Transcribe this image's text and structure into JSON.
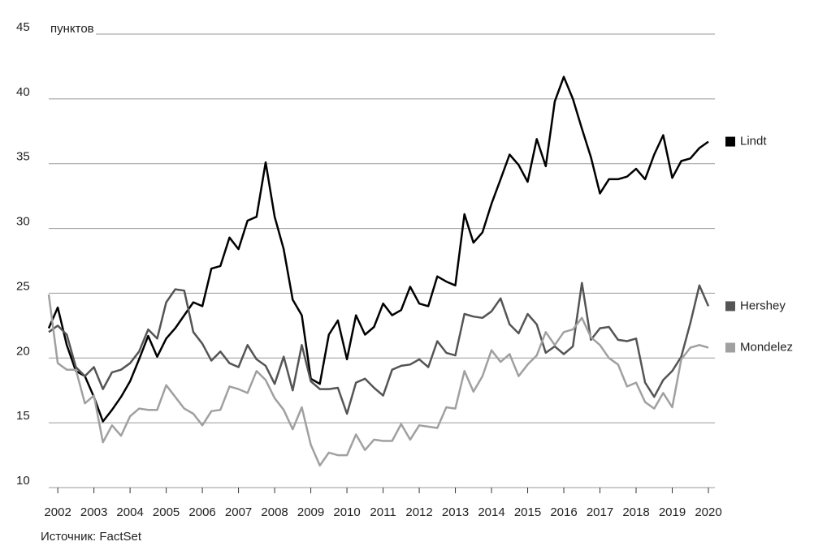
{
  "chart_data": {
    "type": "line",
    "y_unit_label": "пунктов",
    "source": "Источник: FactSet",
    "x": [
      2001.75,
      2002,
      2002.25,
      2002.5,
      2002.75,
      2003,
      2003.25,
      2003.5,
      2003.75,
      2004,
      2004.25,
      2004.5,
      2004.75,
      2005,
      2005.25,
      2005.5,
      2005.75,
      2006,
      2006.25,
      2006.5,
      2006.75,
      2007,
      2007.25,
      2007.5,
      2007.75,
      2008,
      2008.25,
      2008.5,
      2008.75,
      2009,
      2009.25,
      2009.5,
      2009.75,
      2010,
      2010.25,
      2010.5,
      2010.75,
      2011,
      2011.25,
      2011.5,
      2011.75,
      2012,
      2012.25,
      2012.5,
      2012.75,
      2013,
      2013.25,
      2013.5,
      2013.75,
      2014,
      2014.25,
      2014.5,
      2014.75,
      2015,
      2015.25,
      2015.5,
      2015.75,
      2016,
      2016.25,
      2016.5,
      2016.75,
      2017,
      2017.25,
      2017.5,
      2017.75,
      2018,
      2018.25,
      2018.5,
      2018.75,
      2019,
      2019.25,
      2019.5,
      2019.75,
      2020
    ],
    "series": [
      {
        "name": "Lindt",
        "color": "#000000",
        "values": [
          22.3,
          23.9,
          21.0,
          19.0,
          18.6,
          17.0,
          15.1,
          16.0,
          17.0,
          18.2,
          19.9,
          21.7,
          20.1,
          21.5,
          22.3,
          23.3,
          24.3,
          24.0,
          26.9,
          27.1,
          29.3,
          28.4,
          30.6,
          30.9,
          35.1,
          30.9,
          28.4,
          24.5,
          23.3,
          18.4,
          18.0,
          21.8,
          22.9,
          19.9,
          23.3,
          21.8,
          22.4,
          24.2,
          23.3,
          23.7,
          25.5,
          24.2,
          24.0,
          26.3,
          25.9,
          25.6,
          31.1,
          28.9,
          29.7,
          31.9,
          33.8,
          35.7,
          34.9,
          33.6,
          36.9,
          34.8,
          39.8,
          41.7,
          40.0,
          37.7,
          35.5,
          32.7,
          33.8,
          33.8,
          34.0,
          34.6,
          33.8,
          35.7,
          37.2,
          33.9,
          35.2,
          35.4,
          36.2,
          36.7
        ]
      },
      {
        "name": "Hershey",
        "color": "#555555",
        "values": [
          22.0,
          22.5,
          21.8,
          19.3,
          18.6,
          19.3,
          17.6,
          18.9,
          19.1,
          19.6,
          20.5,
          22.2,
          21.5,
          24.3,
          25.3,
          25.2,
          22.0,
          21.1,
          19.8,
          20.5,
          19.6,
          19.3,
          21.0,
          19.9,
          19.4,
          18.0,
          20.1,
          17.5,
          21.0,
          18.2,
          17.6,
          17.6,
          17.7,
          15.7,
          18.1,
          18.4,
          17.7,
          17.1,
          19.1,
          19.4,
          19.5,
          19.9,
          19.3,
          21.3,
          20.4,
          20.2,
          23.4,
          23.2,
          23.1,
          23.6,
          24.6,
          22.6,
          21.9,
          23.4,
          22.6,
          20.4,
          20.9,
          20.3,
          20.9,
          25.8,
          21.4,
          22.3,
          22.4,
          21.4,
          21.3,
          21.5,
          18.1,
          17.0,
          18.3,
          19.0,
          20.1,
          22.7,
          25.6,
          24.0
        ]
      },
      {
        "name": "Mondelez",
        "color": "#a0a0a0",
        "values": [
          24.9,
          19.6,
          19.1,
          19.1,
          16.5,
          17.1,
          13.5,
          14.8,
          14.0,
          15.5,
          16.1,
          16.0,
          16.0,
          17.9,
          17.0,
          16.1,
          15.7,
          14.8,
          15.9,
          16.0,
          17.8,
          17.6,
          17.3,
          19.0,
          18.3,
          16.9,
          16.0,
          14.5,
          16.2,
          13.3,
          11.7,
          12.7,
          12.5,
          12.5,
          14.1,
          12.9,
          13.7,
          13.6,
          13.6,
          14.9,
          13.7,
          14.8,
          14.7,
          14.6,
          16.2,
          16.1,
          19.0,
          17.4,
          18.6,
          20.6,
          19.7,
          20.3,
          18.6,
          19.5,
          20.2,
          22.0,
          21.0,
          22.0,
          22.2,
          23.1,
          21.6,
          21.0,
          20.0,
          19.5,
          17.8,
          18.1,
          16.6,
          16.1,
          17.3,
          16.2,
          19.9,
          20.8,
          21.0,
          20.8
        ]
      }
    ],
    "xlim": [
      2001.75,
      2020
    ],
    "xticks": [
      2002,
      2003,
      2004,
      2005,
      2006,
      2007,
      2008,
      2009,
      2010,
      2011,
      2012,
      2013,
      2014,
      2015,
      2016,
      2017,
      2018,
      2019,
      2020
    ],
    "ylim": [
      10,
      45
    ],
    "yticks": [
      10,
      15,
      20,
      25,
      30,
      35,
      40,
      45
    ],
    "grid": true,
    "legend": "right"
  }
}
